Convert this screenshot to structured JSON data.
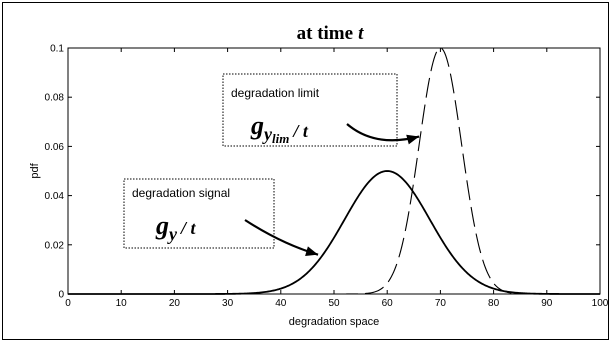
{
  "chart_data": {
    "type": "line",
    "title": "at time",
    "title_var": "t",
    "xlabel": "degradation space",
    "ylabel": "pdf",
    "xlim": [
      0,
      100
    ],
    "ylim": [
      0,
      0.1
    ],
    "xticks": [
      "0",
      "10",
      "20",
      "30",
      "40",
      "50",
      "60",
      "70",
      "80",
      "90",
      "100"
    ],
    "yticks": [
      "0",
      "0.02",
      "0.04",
      "0.06",
      "0.08",
      "0.1"
    ],
    "grid": false,
    "series": [
      {
        "name": "degradation signal",
        "style": "solid",
        "color": "#000000",
        "distribution": "normal",
        "mean": 60,
        "std": 8,
        "peak": 0.05
      },
      {
        "name": "degradation limit",
        "style": "dashed",
        "color": "#000000",
        "distribution": "normal",
        "mean": 70,
        "std": 4,
        "peak": 0.1
      }
    ],
    "annotations": [
      {
        "label": "degradation signal",
        "math_base": "g",
        "math_sub": "y",
        "math_tail": "/ t",
        "arrow_to": [
          47,
          0.016
        ]
      },
      {
        "label": "degradation limit",
        "math_base": "g",
        "math_sub": "y",
        "math_subsub": "lim",
        "math_tail": "/ t",
        "arrow_to": [
          66,
          0.064
        ]
      }
    ]
  }
}
